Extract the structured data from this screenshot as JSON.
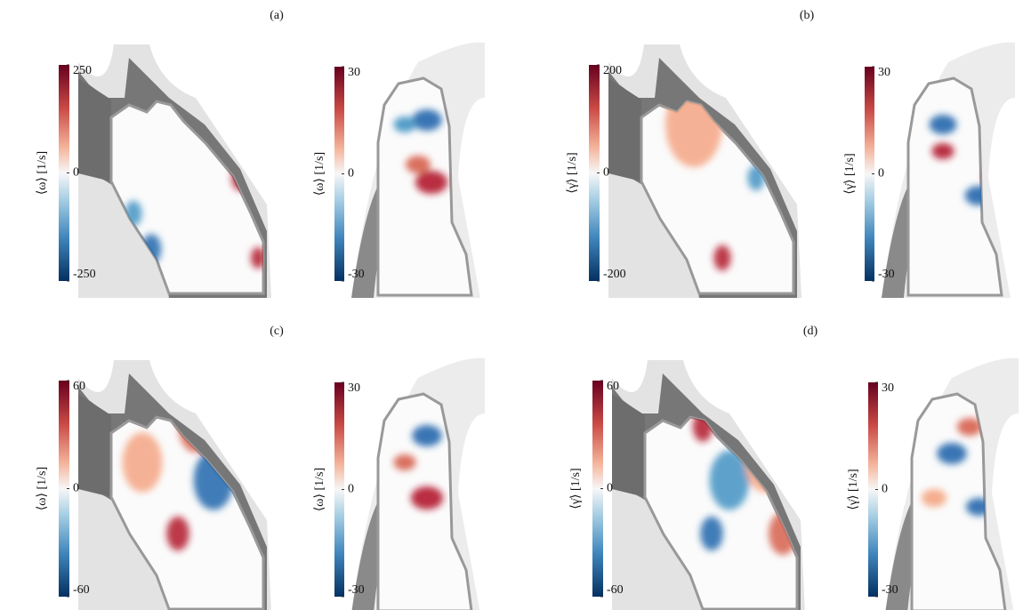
{
  "panels": [
    {
      "label": "(a)",
      "plots": [
        {
          "colorbar": {
            "label": "⟨ω⟩ [1/s]",
            "clim": [
              -250,
              250
            ],
            "ticks": [
              250,
              0,
              -250
            ]
          }
        },
        {
          "colorbar": {
            "label": "⟨ω⟩ [1/s]",
            "clim": [
              -30,
              30
            ],
            "ticks": [
              30,
              0,
              -30
            ]
          }
        }
      ]
    },
    {
      "label": "(b)",
      "plots": [
        {
          "colorbar": {
            "label": "⟨γ̇⟩ [1/s]",
            "clim": [
              -200,
              200
            ],
            "ticks": [
              200,
              0,
              -200
            ]
          }
        },
        {
          "colorbar": {
            "label": "⟨γ̇⟩ [1/s]",
            "clim": [
              -30,
              30
            ],
            "ticks": [
              30,
              0,
              -30
            ]
          }
        }
      ]
    },
    {
      "label": "(c)",
      "plots": [
        {
          "colorbar": {
            "label": "⟨ω⟩ [1/s]",
            "clim": [
              -60,
              60
            ],
            "ticks": [
              60,
              0,
              -60
            ]
          }
        },
        {
          "colorbar": {
            "label": "⟨ω⟩ [1/s]",
            "clim": [
              -30,
              30
            ],
            "ticks": [
              30,
              0,
              -30
            ]
          }
        }
      ]
    },
    {
      "label": "(d)",
      "plots": [
        {
          "colorbar": {
            "label": "⟨γ̇⟩ [1/s]",
            "clim": [
              -60,
              60
            ],
            "ticks": [
              60,
              0,
              -60
            ]
          }
        },
        {
          "colorbar": {
            "label": "⟨γ̇⟩ [1/s]",
            "clim": [
              -30,
              30
            ],
            "ticks": [
              30,
              0,
              -30
            ]
          }
        }
      ]
    }
  ]
}
